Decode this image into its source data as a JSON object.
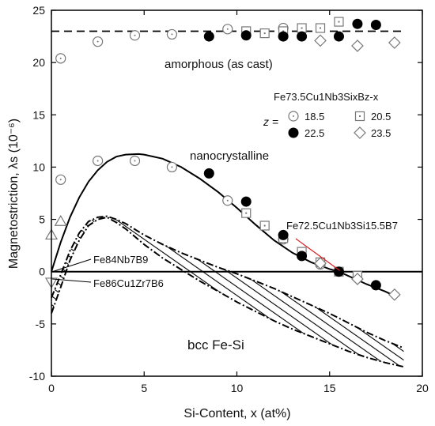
{
  "chart_data": {
    "type": "scatter",
    "xlabel": "Si-Content, x (at%)",
    "ylabel": "Magnetostriction, λs (10⁻⁶)",
    "xlim": [
      0,
      20
    ],
    "ylim": [
      -10,
      25
    ],
    "xticks": [
      0,
      5,
      10,
      15,
      20
    ],
    "yticks": [
      -10,
      -5,
      0,
      5,
      10,
      15,
      20,
      25
    ],
    "grid": false,
    "legend": {
      "placement": "right",
      "title": "Fe73.5Cu1Nb3SixBz-x",
      "z_label": "z ="
    },
    "series": [
      {
        "name": "18.5",
        "marker": "circle-open",
        "color": "#777777",
        "points": [
          [
            0.5,
            20.4
          ],
          [
            2.5,
            22.0
          ],
          [
            4.5,
            22.6
          ],
          [
            6.5,
            22.7
          ],
          [
            9.5,
            23.2
          ],
          [
            12.5,
            23.3
          ],
          [
            0.5,
            8.8
          ],
          [
            2.5,
            10.6
          ],
          [
            4.5,
            10.6
          ],
          [
            6.5,
            10.0
          ],
          [
            9.5,
            6.8
          ],
          [
            12.5,
            3.1
          ],
          [
            14.5,
            0.7
          ]
        ]
      },
      {
        "name": "20.5",
        "marker": "square-open",
        "color": "#777777",
        "points": [
          [
            10.5,
            23.0
          ],
          [
            11.5,
            22.8
          ],
          [
            12.5,
            23.0
          ],
          [
            13.5,
            23.3
          ],
          [
            14.5,
            23.3
          ],
          [
            15.5,
            23.9
          ],
          [
            10.5,
            5.6
          ],
          [
            11.5,
            4.4
          ],
          [
            12.5,
            3.2
          ],
          [
            13.5,
            1.9
          ],
          [
            14.5,
            0.9
          ],
          [
            15.5,
            0.0
          ],
          [
            16.5,
            -0.4
          ]
        ]
      },
      {
        "name": "22.5",
        "marker": "circle-filled",
        "color": "#000000",
        "points": [
          [
            8.5,
            22.5
          ],
          [
            10.5,
            22.6
          ],
          [
            12.5,
            22.5
          ],
          [
            13.5,
            22.5
          ],
          [
            15.5,
            22.5
          ],
          [
            16.5,
            23.7
          ],
          [
            17.5,
            23.6
          ],
          [
            8.5,
            9.4
          ],
          [
            10.5,
            6.7
          ],
          [
            12.5,
            3.5
          ],
          [
            13.5,
            1.5
          ],
          [
            15.5,
            0.0
          ],
          [
            17.5,
            -1.3
          ]
        ]
      },
      {
        "name": "23.5",
        "marker": "diamond-open",
        "color": "#777777",
        "points": [
          [
            14.5,
            22.1
          ],
          [
            16.5,
            21.6
          ],
          [
            18.5,
            21.9
          ],
          [
            14.5,
            0.8
          ],
          [
            16.5,
            -0.7
          ],
          [
            18.5,
            -2.2
          ]
        ]
      },
      {
        "name": "Fe84Nb7B9",
        "marker": "triangle-up-open",
        "color": "#777777",
        "points": [
          [
            0,
            3.5
          ],
          [
            0.5,
            4.8
          ]
        ]
      },
      {
        "name": "Fe86Cu1Zr7B6",
        "marker": "triangle-down-open",
        "color": "#777777",
        "points": [
          [
            0,
            -1.0
          ]
        ]
      }
    ],
    "curves": {
      "amorphous_fit": [
        [
          0,
          23.0
        ],
        [
          19,
          23.0
        ]
      ],
      "nanocrystalline_fit": [
        [
          0,
          0.0
        ],
        [
          0.5,
          2.8
        ],
        [
          1,
          5.2
        ],
        [
          1.5,
          7.1
        ],
        [
          2,
          8.6
        ],
        [
          2.5,
          9.7
        ],
        [
          3,
          10.5
        ],
        [
          3.5,
          11.0
        ],
        [
          4,
          11.2
        ],
        [
          4.7,
          11.25
        ],
        [
          5,
          11.2
        ],
        [
          6,
          10.8
        ],
        [
          7,
          10.0
        ],
        [
          8,
          8.9
        ],
        [
          9,
          7.6
        ],
        [
          10,
          6.1
        ],
        [
          11,
          4.5
        ],
        [
          12,
          3.0
        ],
        [
          13,
          1.8
        ],
        [
          14,
          0.9
        ],
        [
          15,
          0.25
        ],
        [
          15.5,
          0.0
        ],
        [
          16,
          -0.4
        ],
        [
          17,
          -1.2
        ],
        [
          18,
          -1.9
        ],
        [
          18.6,
          -2.4
        ]
      ],
      "bcc_upper": [
        [
          0,
          -2.5
        ],
        [
          0.5,
          -0.3
        ],
        [
          1,
          2.0
        ],
        [
          1.5,
          3.7
        ],
        [
          2,
          4.8
        ],
        [
          2.5,
          5.2
        ],
        [
          3,
          5.3
        ],
        [
          3.5,
          5.0
        ],
        [
          4,
          4.6
        ],
        [
          5,
          3.5
        ],
        [
          6,
          2.6
        ],
        [
          7,
          1.8
        ],
        [
          8,
          1.1
        ],
        [
          9,
          0.4
        ],
        [
          10,
          -0.2
        ],
        [
          11,
          -0.9
        ],
        [
          12,
          -1.6
        ],
        [
          13,
          -2.4
        ],
        [
          14,
          -3.2
        ],
        [
          15,
          -4.0
        ],
        [
          16,
          -4.9
        ],
        [
          17,
          -5.8
        ],
        [
          18,
          -6.6
        ],
        [
          19,
          -7.3
        ]
      ],
      "bcc_lower": [
        [
          0,
          -4.0
        ],
        [
          0.5,
          -1.5
        ],
        [
          1,
          1.1
        ],
        [
          1.5,
          3.0
        ],
        [
          2,
          4.4
        ],
        [
          2.5,
          5.0
        ],
        [
          3,
          5.2
        ],
        [
          3.5,
          4.7
        ],
        [
          4,
          4.1
        ],
        [
          5,
          2.6
        ],
        [
          6,
          1.3
        ],
        [
          7,
          0.2
        ],
        [
          8,
          -0.9
        ],
        [
          9,
          -1.9
        ],
        [
          10,
          -2.9
        ],
        [
          11,
          -3.8
        ],
        [
          12,
          -4.7
        ],
        [
          13,
          -5.5
        ],
        [
          14,
          -6.2
        ],
        [
          15,
          -6.9
        ],
        [
          16,
          -7.6
        ],
        [
          17,
          -8.2
        ],
        [
          18,
          -8.7
        ],
        [
          19,
          -9.1
        ]
      ]
    },
    "annotations": {
      "amorphous": "amorphous (as cast)",
      "nanocrystalline": "nanocrystalline",
      "bcc": "bcc Fe-Si",
      "fe72": "Fe72.5Cu1Nb3Si15.5B7",
      "fe84": "Fe84Nb7B9",
      "fe86": "Fe86Cu1Zr7B6"
    }
  }
}
